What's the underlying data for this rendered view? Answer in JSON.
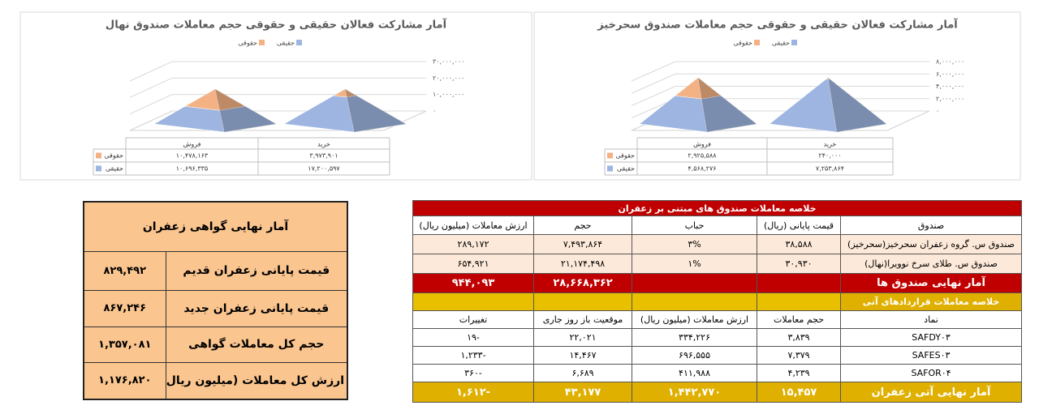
{
  "chart_data": [
    {
      "type": "pyramid",
      "title": "آمار مشارکت فعالان حقیقی و حقوقی حجم معاملات صندوق نهال",
      "categories": [
        "فروش",
        "خرید"
      ],
      "series": [
        {
          "name": "حقوقی",
          "color": "#f4b183",
          "values": [
            10478163,
            3973901
          ],
          "value_labels": [
            "۱۰,۴۷۸,۱۶۳",
            "۳,۹۷۳,۹۰۱"
          ]
        },
        {
          "name": "حقیقی",
          "color": "#9db5e0",
          "values": [
            10696335,
            17200597
          ],
          "value_labels": [
            "۱۰,۶۹۶,۳۳۵",
            "۱۷,۲۰۰,۵۹۷"
          ]
        }
      ],
      "ylim": [
        0,
        30000000
      ],
      "yticks": [
        {
          "value": 0,
          "label": "۰"
        },
        {
          "value": 10000000,
          "label": "۱۰,۰۰۰,۰۰۰"
        },
        {
          "value": 20000000,
          "label": "۲۰,۰۰۰,۰۰۰"
        },
        {
          "value": 30000000,
          "label": "۳۰,۰۰۰,۰۰۰"
        }
      ],
      "grid": true
    },
    {
      "type": "pyramid",
      "title": "آمار مشارکت فعالان حقیقی و حقوقی حجم معاملات صندوق سحرخیز",
      "categories": [
        "فروش",
        "خرید"
      ],
      "series": [
        {
          "name": "حقوقی",
          "color": "#f4b183",
          "values": [
            2925588,
            240000
          ],
          "value_labels": [
            "۲,۹۲۵,۵۸۸",
            "۲۴۰,۰۰۰"
          ]
        },
        {
          "name": "حقیقی",
          "color": "#9db5e0",
          "values": [
            4568276,
            7253864
          ],
          "value_labels": [
            "۴,۵۶۸,۲۷۶",
            "۷,۲۵۳,۸۶۴"
          ]
        }
      ],
      "ylim": [
        0,
        8000000
      ],
      "yticks": [
        {
          "value": 0,
          "label": "۰"
        },
        {
          "value": 2000000,
          "label": "۲,۰۰۰,۰۰۰"
        },
        {
          "value": 4000000,
          "label": "۴,۰۰۰,۰۰۰"
        },
        {
          "value": 6000000,
          "label": "۶,۰۰۰,۰۰۰"
        },
        {
          "value": 8000000,
          "label": "۸,۰۰۰,۰۰۰"
        }
      ],
      "grid": true
    }
  ],
  "tables": {
    "certificate": {
      "title": "آمار نهایی گواهی زعفران",
      "rows": [
        [
          "قیمت پایانی زعفران قدیم",
          "۸۲۹,۴۹۲"
        ],
        [
          "قیمت پایانی زعفران جدید",
          "۸۶۷,۲۴۶"
        ],
        [
          "حجم کل معاملات گواهی",
          "۱,۳۵۷,۰۸۱"
        ],
        [
          "ارزش کل معاملات (میلیون ریال)",
          "۱,۱۷۶,۸۲۰"
        ]
      ]
    },
    "funds": {
      "title": "خلاصه معاملات صندوق های مبتنی بر زعفران",
      "header": [
        "صندوق",
        "قیمت پایانی (ریال)",
        "حباب",
        "حجم",
        "ارزش معاملات (میلیون ریال)"
      ],
      "rows": [
        [
          "صندوق س. گروه زعفران سحرخیز(سحرخیز)",
          "۳۸,۵۸۸",
          "۳%",
          "۷,۴۹۳,۸۶۴",
          "۲۸۹,۱۷۲"
        ],
        [
          "صندوق س. طلای سرخ نوویرا(نهال)",
          "۳۰,۹۳۰",
          "۱%",
          "۲۱,۱۷۴,۴۹۸",
          "۶۵۴,۹۲۱"
        ]
      ],
      "total": {
        "label": "آمار نهایی صندوق ها",
        "volume": "۲۸,۶۶۸,۳۶۲",
        "value": "۹۴۴,۰۹۳"
      }
    },
    "futures": {
      "title": "خلاصه معاملات قراردادهای آتی",
      "header": [
        "نماد",
        "حجم معاملات",
        "ارزش معاملات (میلیون ریال)",
        "موقعیت باز روز جاری",
        "تغییرات"
      ],
      "rows": [
        [
          "SAFDY۰۳",
          "۳,۸۳۹",
          "۳۳۴,۲۲۶",
          "۲۲,۰۲۱",
          "-۱۹"
        ],
        [
          "SAFES۰۳",
          "۷,۳۷۹",
          "۶۹۶,۵۵۵",
          "۱۴,۴۶۷",
          "-۱,۲۳۳"
        ],
        [
          "SAFOR۰۴",
          "۴,۲۳۹",
          "۴۱۱,۹۸۸",
          "۶,۶۸۹",
          "-۳۶۰"
        ]
      ],
      "total": [
        "آمار نهایی آتی زعفران",
        "۱۵,۴۵۷",
        "۱,۴۴۲,۷۷۰",
        "۴۳,۱۷۷",
        "-۱,۶۱۲"
      ]
    }
  }
}
